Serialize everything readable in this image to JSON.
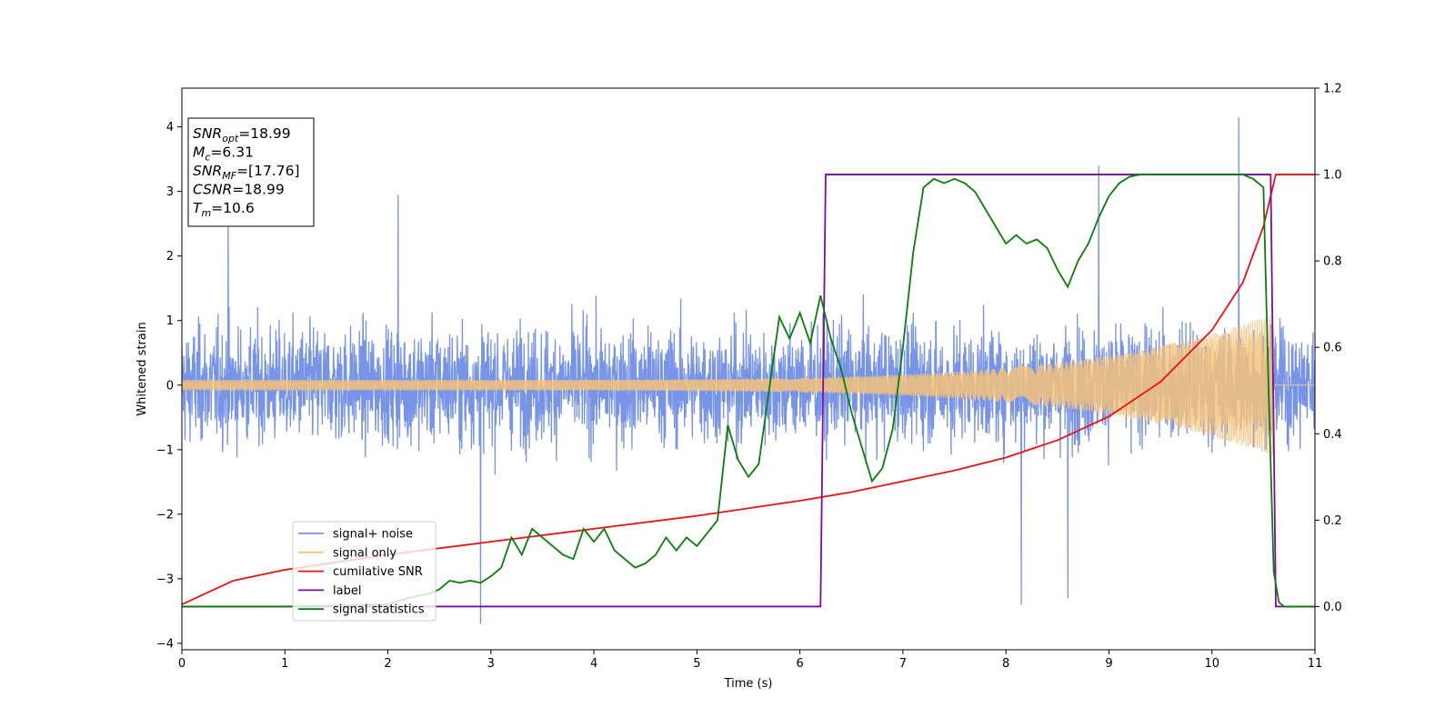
{
  "chart_data": {
    "type": "line",
    "xlabel": "Time (s)",
    "ylabel": "Whitened strain",
    "xlim": [
      0,
      11
    ],
    "ylim": [
      -4.1,
      4.6
    ],
    "y2lim": [
      -0.1,
      1.2
    ],
    "x_ticks": [
      0,
      1,
      2,
      3,
      4,
      5,
      6,
      7,
      8,
      9,
      10,
      11
    ],
    "y_ticks": [
      -4,
      -3,
      -2,
      -1,
      0,
      1,
      2,
      3,
      4
    ],
    "y2_ticks": [
      0.0,
      0.2,
      0.4,
      0.6,
      0.8,
      1.0,
      1.2
    ],
    "grid": false,
    "legend_position": "lower-left",
    "annotation": {
      "lines": [
        {
          "base": "SNR",
          "sub": "opt",
          "rest": "=18.99"
        },
        {
          "base": "M",
          "sub": "c",
          "rest": "=6.31"
        },
        {
          "base": "SNR",
          "sub": "MF",
          "rest": "=[17.76]"
        },
        {
          "base": "CSNR",
          "sub": "",
          "rest": "=18.99"
        },
        {
          "base": "T",
          "sub": "m",
          "rest": "=10.6"
        }
      ]
    },
    "series": [
      {
        "name": "signal+ noise",
        "color": "#7894e8",
        "axis": "left",
        "kind": "noisy-band",
        "description_points": {
          "x": [
            0,
            11
          ],
          "typical_amplitude": 1.0,
          "max_points": [
            [
              0.45,
              3.0
            ],
            [
              2.1,
              2.95
            ],
            [
              8.9,
              3.4
            ],
            [
              10.26,
              4.15
            ]
          ],
          "min_points": [
            [
              2.9,
              -3.7
            ],
            [
              8.15,
              -3.4
            ],
            [
              8.6,
              -3.3
            ]
          ]
        }
      },
      {
        "name": "signal only",
        "color": "#f5c27a",
        "axis": "left",
        "kind": "chirp",
        "amplitude_start": 0.08,
        "amplitude_end": 1.1,
        "t_merger": 10.6
      },
      {
        "name": "cumilative SNR",
        "color": "#ee1111",
        "axis": "right",
        "x": [
          0,
          0.5,
          1,
          2,
          3,
          4,
          5,
          6,
          6.5,
          7,
          7.5,
          8,
          8.5,
          9,
          9.5,
          10,
          10.3,
          10.5,
          10.6,
          10.62,
          11
        ],
        "y": [
          0.005,
          0.06,
          0.085,
          0.12,
          0.15,
          0.18,
          0.21,
          0.245,
          0.265,
          0.29,
          0.315,
          0.345,
          0.385,
          0.44,
          0.52,
          0.64,
          0.75,
          0.88,
          0.98,
          1.0,
          1.0
        ]
      },
      {
        "name": "label",
        "color": "#7f0a9e",
        "axis": "right",
        "x": [
          0,
          6.2,
          6.25,
          10.57,
          10.62,
          11
        ],
        "y": [
          0,
          0,
          1,
          1,
          0,
          0
        ]
      },
      {
        "name": "signal statistics",
        "color": "#0a7d0a",
        "axis": "right",
        "x": [
          0,
          1,
          2,
          2.2,
          2.4,
          2.5,
          2.6,
          2.7,
          2.8,
          2.9,
          3.0,
          3.1,
          3.2,
          3.3,
          3.4,
          3.5,
          3.6,
          3.7,
          3.8,
          3.9,
          4.0,
          4.1,
          4.2,
          4.3,
          4.4,
          4.5,
          4.6,
          4.7,
          4.8,
          4.9,
          5.0,
          5.1,
          5.2,
          5.3,
          5.4,
          5.5,
          5.6,
          5.7,
          5.8,
          5.9,
          6.0,
          6.1,
          6.2,
          6.3,
          6.4,
          6.5,
          6.6,
          6.7,
          6.8,
          6.9,
          7.0,
          7.1,
          7.2,
          7.3,
          7.4,
          7.5,
          7.6,
          7.7,
          7.8,
          7.9,
          8.0,
          8.1,
          8.2,
          8.3,
          8.4,
          8.5,
          8.6,
          8.7,
          8.8,
          8.9,
          9.0,
          9.1,
          9.2,
          9.3,
          9.4,
          9.5,
          9.7,
          9.9,
          10.1,
          10.3,
          10.4,
          10.5,
          10.55,
          10.6,
          10.65,
          10.7,
          11
        ],
        "y": [
          0.0,
          0.0,
          0.005,
          0.02,
          0.03,
          0.04,
          0.06,
          0.055,
          0.06,
          0.055,
          0.07,
          0.09,
          0.16,
          0.12,
          0.18,
          0.16,
          0.14,
          0.12,
          0.11,
          0.18,
          0.15,
          0.18,
          0.13,
          0.11,
          0.09,
          0.1,
          0.12,
          0.16,
          0.13,
          0.16,
          0.14,
          0.17,
          0.2,
          0.42,
          0.34,
          0.3,
          0.33,
          0.5,
          0.67,
          0.62,
          0.68,
          0.61,
          0.72,
          0.62,
          0.55,
          0.45,
          0.37,
          0.29,
          0.32,
          0.41,
          0.6,
          0.82,
          0.97,
          0.99,
          0.98,
          0.99,
          0.98,
          0.96,
          0.92,
          0.88,
          0.84,
          0.86,
          0.84,
          0.85,
          0.83,
          0.78,
          0.74,
          0.8,
          0.84,
          0.9,
          0.95,
          0.98,
          0.995,
          1.0,
          1.0,
          1.0,
          1.0,
          1.0,
          1.0,
          1.0,
          0.99,
          0.97,
          0.5,
          0.08,
          0.01,
          0.0,
          0.0
        ]
      }
    ]
  }
}
